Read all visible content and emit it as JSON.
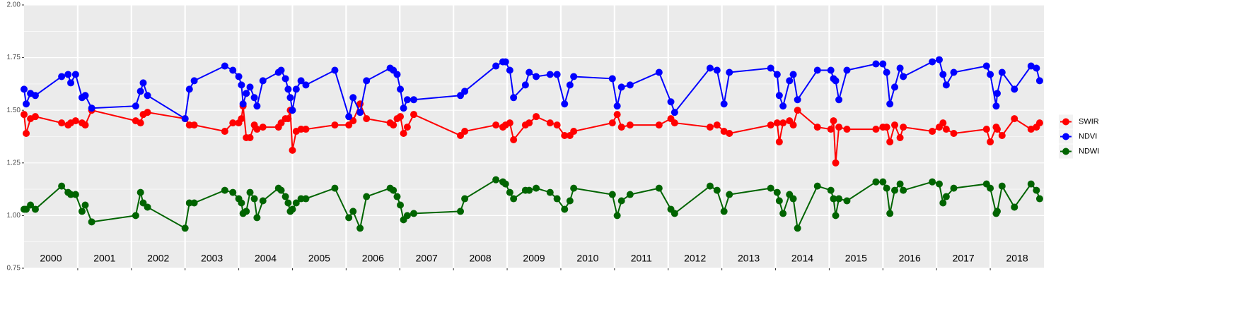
{
  "chart_data": {
    "type": "line",
    "x": [
      2000.0,
      2000.04,
      2000.12,
      2000.21,
      2000.7,
      2000.82,
      2000.87,
      2000.96,
      2001.08,
      2001.14,
      2001.26,
      2002.08,
      2002.17,
      2002.22,
      2002.3,
      2003.0,
      2003.08,
      2003.17,
      2003.74,
      2003.89,
      2004.0,
      2004.05,
      2004.08,
      2004.14,
      2004.21,
      2004.29,
      2004.34,
      2004.45,
      2004.74,
      2004.79,
      2004.87,
      2004.92,
      2004.96,
      2005.0,
      2005.07,
      2005.16,
      2005.25,
      2005.79,
      2006.05,
      2006.13,
      2006.26,
      2006.38,
      2006.82,
      2006.88,
      2006.95,
      2007.01,
      2007.07,
      2007.14,
      2007.26,
      2008.13,
      2008.21,
      2008.79,
      2008.92,
      2008.97,
      2009.05,
      2009.12,
      2009.34,
      2009.41,
      2009.54,
      2009.8,
      2009.93,
      2010.07,
      2010.17,
      2010.24,
      2010.96,
      2011.05,
      2011.13,
      2011.29,
      2011.83,
      2012.05,
      2012.12,
      2012.78,
      2012.91,
      2013.04,
      2013.14,
      2013.91,
      2014.03,
      2014.07,
      2014.14,
      2014.26,
      2014.33,
      2014.41,
      2014.78,
      2015.03,
      2015.08,
      2015.12,
      2015.18,
      2015.33,
      2015.87,
      2016.0,
      2016.07,
      2016.13,
      2016.22,
      2016.32,
      2016.38,
      2016.92,
      2017.05,
      2017.12,
      2017.18,
      2017.32,
      2017.93,
      2018.0,
      2018.11,
      2018.13,
      2018.22,
      2018.45,
      2018.76,
      2018.86,
      2018.92
    ],
    "series": [
      {
        "name": "SWIR",
        "color": "#ff0000",
        "values": [
          1.48,
          1.39,
          1.46,
          1.47,
          1.44,
          1.43,
          1.44,
          1.45,
          1.44,
          1.43,
          1.5,
          1.45,
          1.44,
          1.48,
          1.49,
          1.46,
          1.43,
          1.43,
          1.4,
          1.44,
          1.44,
          1.46,
          1.52,
          1.37,
          1.37,
          1.43,
          1.41,
          1.42,
          1.42,
          1.44,
          1.46,
          1.46,
          1.5,
          1.31,
          1.4,
          1.41,
          1.41,
          1.43,
          1.43,
          1.45,
          1.53,
          1.46,
          1.44,
          1.43,
          1.46,
          1.47,
          1.39,
          1.42,
          1.48,
          1.38,
          1.4,
          1.43,
          1.42,
          1.43,
          1.44,
          1.36,
          1.43,
          1.44,
          1.47,
          1.44,
          1.43,
          1.38,
          1.38,
          1.4,
          1.44,
          1.48,
          1.42,
          1.43,
          1.43,
          1.46,
          1.44,
          1.42,
          1.43,
          1.4,
          1.39,
          1.43,
          1.44,
          1.35,
          1.44,
          1.45,
          1.43,
          1.5,
          1.42,
          1.41,
          1.45,
          1.25,
          1.42,
          1.41,
          1.41,
          1.42,
          1.42,
          1.35,
          1.43,
          1.37,
          1.42,
          1.4,
          1.42,
          1.44,
          1.41,
          1.39,
          1.41,
          1.35,
          1.42,
          1.41,
          1.38,
          1.46,
          1.41,
          1.42,
          1.44
        ]
      },
      {
        "name": "NDVI",
        "color": "#0000ff",
        "values": [
          1.6,
          1.53,
          1.58,
          1.57,
          1.66,
          1.67,
          1.63,
          1.67,
          1.56,
          1.57,
          1.51,
          1.52,
          1.59,
          1.63,
          1.57,
          1.46,
          1.6,
          1.64,
          1.71,
          1.69,
          1.66,
          1.62,
          1.53,
          1.58,
          1.61,
          1.56,
          1.52,
          1.64,
          1.68,
          1.69,
          1.65,
          1.6,
          1.56,
          1.5,
          1.6,
          1.64,
          1.62,
          1.69,
          1.47,
          1.56,
          1.49,
          1.64,
          1.7,
          1.69,
          1.67,
          1.6,
          1.51,
          1.55,
          1.55,
          1.57,
          1.59,
          1.71,
          1.73,
          1.73,
          1.69,
          1.56,
          1.62,
          1.68,
          1.66,
          1.67,
          1.67,
          1.53,
          1.62,
          1.66,
          1.65,
          1.52,
          1.61,
          1.62,
          1.68,
          1.54,
          1.49,
          1.7,
          1.69,
          1.53,
          1.68,
          1.7,
          1.67,
          1.57,
          1.52,
          1.64,
          1.67,
          1.55,
          1.69,
          1.69,
          1.65,
          1.64,
          1.55,
          1.69,
          1.72,
          1.72,
          1.68,
          1.53,
          1.61,
          1.7,
          1.66,
          1.73,
          1.74,
          1.67,
          1.62,
          1.68,
          1.71,
          1.67,
          1.52,
          1.58,
          1.68,
          1.6,
          1.71,
          1.7,
          1.64
        ]
      },
      {
        "name": "NDWI",
        "color": "#006400",
        "values": [
          1.03,
          1.03,
          1.05,
          1.03,
          1.14,
          1.11,
          1.1,
          1.1,
          1.02,
          1.05,
          0.97,
          1.0,
          1.11,
          1.06,
          1.04,
          0.94,
          1.06,
          1.06,
          1.12,
          1.11,
          1.08,
          1.06,
          1.01,
          1.02,
          1.11,
          1.08,
          0.99,
          1.07,
          1.13,
          1.12,
          1.09,
          1.06,
          1.02,
          1.03,
          1.06,
          1.08,
          1.08,
          1.13,
          0.99,
          1.02,
          0.94,
          1.09,
          1.13,
          1.12,
          1.09,
          1.05,
          0.98,
          1.0,
          1.01,
          1.02,
          1.08,
          1.17,
          1.16,
          1.15,
          1.11,
          1.08,
          1.12,
          1.12,
          1.13,
          1.11,
          1.08,
          1.03,
          1.07,
          1.13,
          1.1,
          1.0,
          1.07,
          1.1,
          1.13,
          1.03,
          1.01,
          1.14,
          1.12,
          1.02,
          1.1,
          1.13,
          1.11,
          1.07,
          1.01,
          1.1,
          1.08,
          0.94,
          1.14,
          1.12,
          1.08,
          1.0,
          1.08,
          1.07,
          1.16,
          1.16,
          1.13,
          1.01,
          1.12,
          1.15,
          1.12,
          1.16,
          1.15,
          1.06,
          1.09,
          1.13,
          1.15,
          1.13,
          1.01,
          1.02,
          1.14,
          1.04,
          1.15,
          1.12,
          1.08
        ]
      }
    ],
    "xlim": [
      2000,
      2019
    ],
    "xticks": [
      {
        "value": 2000.5,
        "label": "2000"
      },
      {
        "value": 2001.5,
        "label": "2001"
      },
      {
        "value": 2002.5,
        "label": "2002"
      },
      {
        "value": 2003.5,
        "label": "2003"
      },
      {
        "value": 2004.5,
        "label": "2004"
      },
      {
        "value": 2005.5,
        "label": "2005"
      },
      {
        "value": 2006.5,
        "label": "2006"
      },
      {
        "value": 2007.5,
        "label": "2007"
      },
      {
        "value": 2008.5,
        "label": "2008"
      },
      {
        "value": 2009.5,
        "label": "2009"
      },
      {
        "value": 2010.5,
        "label": "2010"
      },
      {
        "value": 2011.5,
        "label": "2011"
      },
      {
        "value": 2012.5,
        "label": "2012"
      },
      {
        "value": 2013.5,
        "label": "2013"
      },
      {
        "value": 2014.5,
        "label": "2014"
      },
      {
        "value": 2015.5,
        "label": "2015"
      },
      {
        "value": 2016.5,
        "label": "2016"
      },
      {
        "value": 2017.5,
        "label": "2017"
      },
      {
        "value": 2018.5,
        "label": "2018"
      }
    ],
    "year_boundaries": [
      2001,
      2002,
      2003,
      2004,
      2005,
      2006,
      2007,
      2008,
      2009,
      2010,
      2011,
      2012,
      2013,
      2014,
      2015,
      2016,
      2017,
      2018
    ],
    "ylim": [
      0.75,
      2.0
    ],
    "yticks": [
      0.75,
      {
        "value": 1.0,
        "label": "1.00"
      },
      1.25,
      {
        "value": 1.5,
        "label": "1.50"
      },
      1.75,
      {
        "value": 2.0,
        "label": "2.00"
      }
    ],
    "grid": true,
    "legend": "right"
  }
}
